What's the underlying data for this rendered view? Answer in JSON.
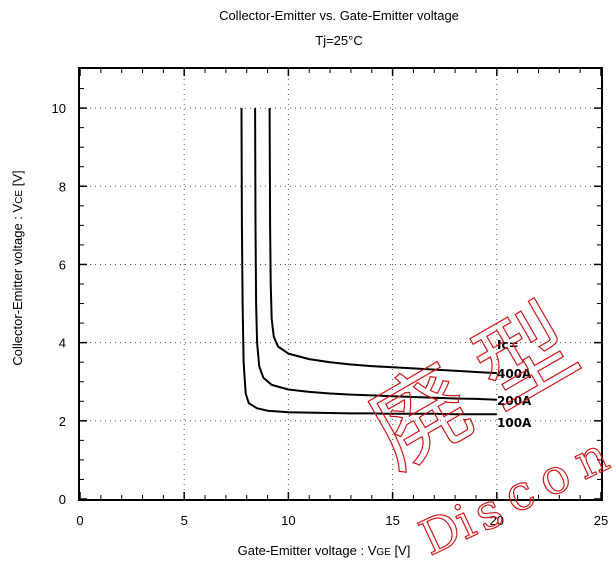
{
  "chart_data": {
    "type": "line",
    "title": "Collector-Emitter  vs.  Gate-Emitter  voltage",
    "subtitle": "Tj=25°C",
    "xlabel_main": "Gate-Emitter  voltage  :  V",
    "xlabel_sub": "GE",
    "xlabel_unit": " [V]",
    "ylabel_main": "Collector-Emitter  voltage  :   V",
    "ylabel_sub": "CE",
    "ylabel_unit": " [V]",
    "xlim": [
      0,
      25
    ],
    "ylim": [
      0,
      11
    ],
    "xticks": [
      0,
      5,
      10,
      15,
      20,
      25
    ],
    "yticks": [
      0,
      2,
      4,
      6,
      8,
      10
    ],
    "grid": true,
    "series_header": "Ic=",
    "series": [
      {
        "name": "400A",
        "x": [
          9.1,
          9.12,
          9.15,
          9.2,
          9.3,
          9.5,
          10,
          11,
          12,
          13,
          14,
          15,
          16,
          17,
          18,
          19,
          20
        ],
        "y": [
          10.0,
          7.0,
          5.5,
          4.6,
          4.15,
          3.9,
          3.72,
          3.58,
          3.5,
          3.44,
          3.4,
          3.37,
          3.34,
          3.31,
          3.28,
          3.25,
          3.22
        ]
      },
      {
        "name": "200A",
        "x": [
          8.4,
          8.42,
          8.45,
          8.5,
          8.6,
          8.8,
          9.2,
          10,
          11,
          12,
          13,
          14,
          15,
          16,
          17,
          18,
          19,
          20
        ],
        "y": [
          10.0,
          7.0,
          5.0,
          4.0,
          3.4,
          3.1,
          2.92,
          2.8,
          2.74,
          2.7,
          2.67,
          2.65,
          2.63,
          2.61,
          2.59,
          2.57,
          2.56,
          2.54
        ]
      },
      {
        "name": "100A",
        "x": [
          7.75,
          7.77,
          7.8,
          7.85,
          7.95,
          8.1,
          8.5,
          9,
          10,
          11,
          12,
          13,
          14,
          15,
          16,
          17,
          18,
          19,
          20
        ],
        "y": [
          10.0,
          7.0,
          5.0,
          3.5,
          2.7,
          2.45,
          2.32,
          2.26,
          2.22,
          2.21,
          2.2,
          2.19,
          2.19,
          2.18,
          2.18,
          2.18,
          2.17,
          2.17,
          2.17
        ]
      }
    ]
  },
  "watermark": {
    "chars": [
      "廃",
      "型",
      "Di",
      "s",
      "c",
      "o",
      "n"
    ],
    "color": "#d01818"
  }
}
